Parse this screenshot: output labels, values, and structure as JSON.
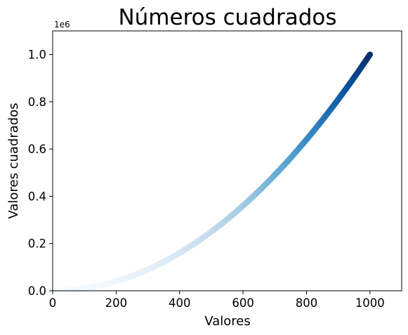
{
  "chart_data": {
    "type": "scatter",
    "title": "Números cuadrados",
    "xlabel": "Valores",
    "ylabel": "Valores cuadrados",
    "x_range": [
      1,
      1000
    ],
    "y_function": "x^2",
    "xlim": [
      0,
      1100
    ],
    "ylim": [
      0,
      1100000
    ],
    "x_ticks": [
      0,
      200,
      400,
      600,
      800,
      1000
    ],
    "x_tick_labels": [
      "0",
      "200",
      "400",
      "600",
      "800",
      "1000"
    ],
    "y_ticks": [
      0,
      200000,
      400000,
      600000,
      800000,
      1000000
    ],
    "y_tick_labels": [
      "0.0",
      "0.2",
      "0.4",
      "0.6",
      "0.8",
      "1.0"
    ],
    "y_offset_label": "1e6",
    "colormap": "Blues",
    "color_by": "y",
    "grid": false,
    "legend": "none"
  }
}
